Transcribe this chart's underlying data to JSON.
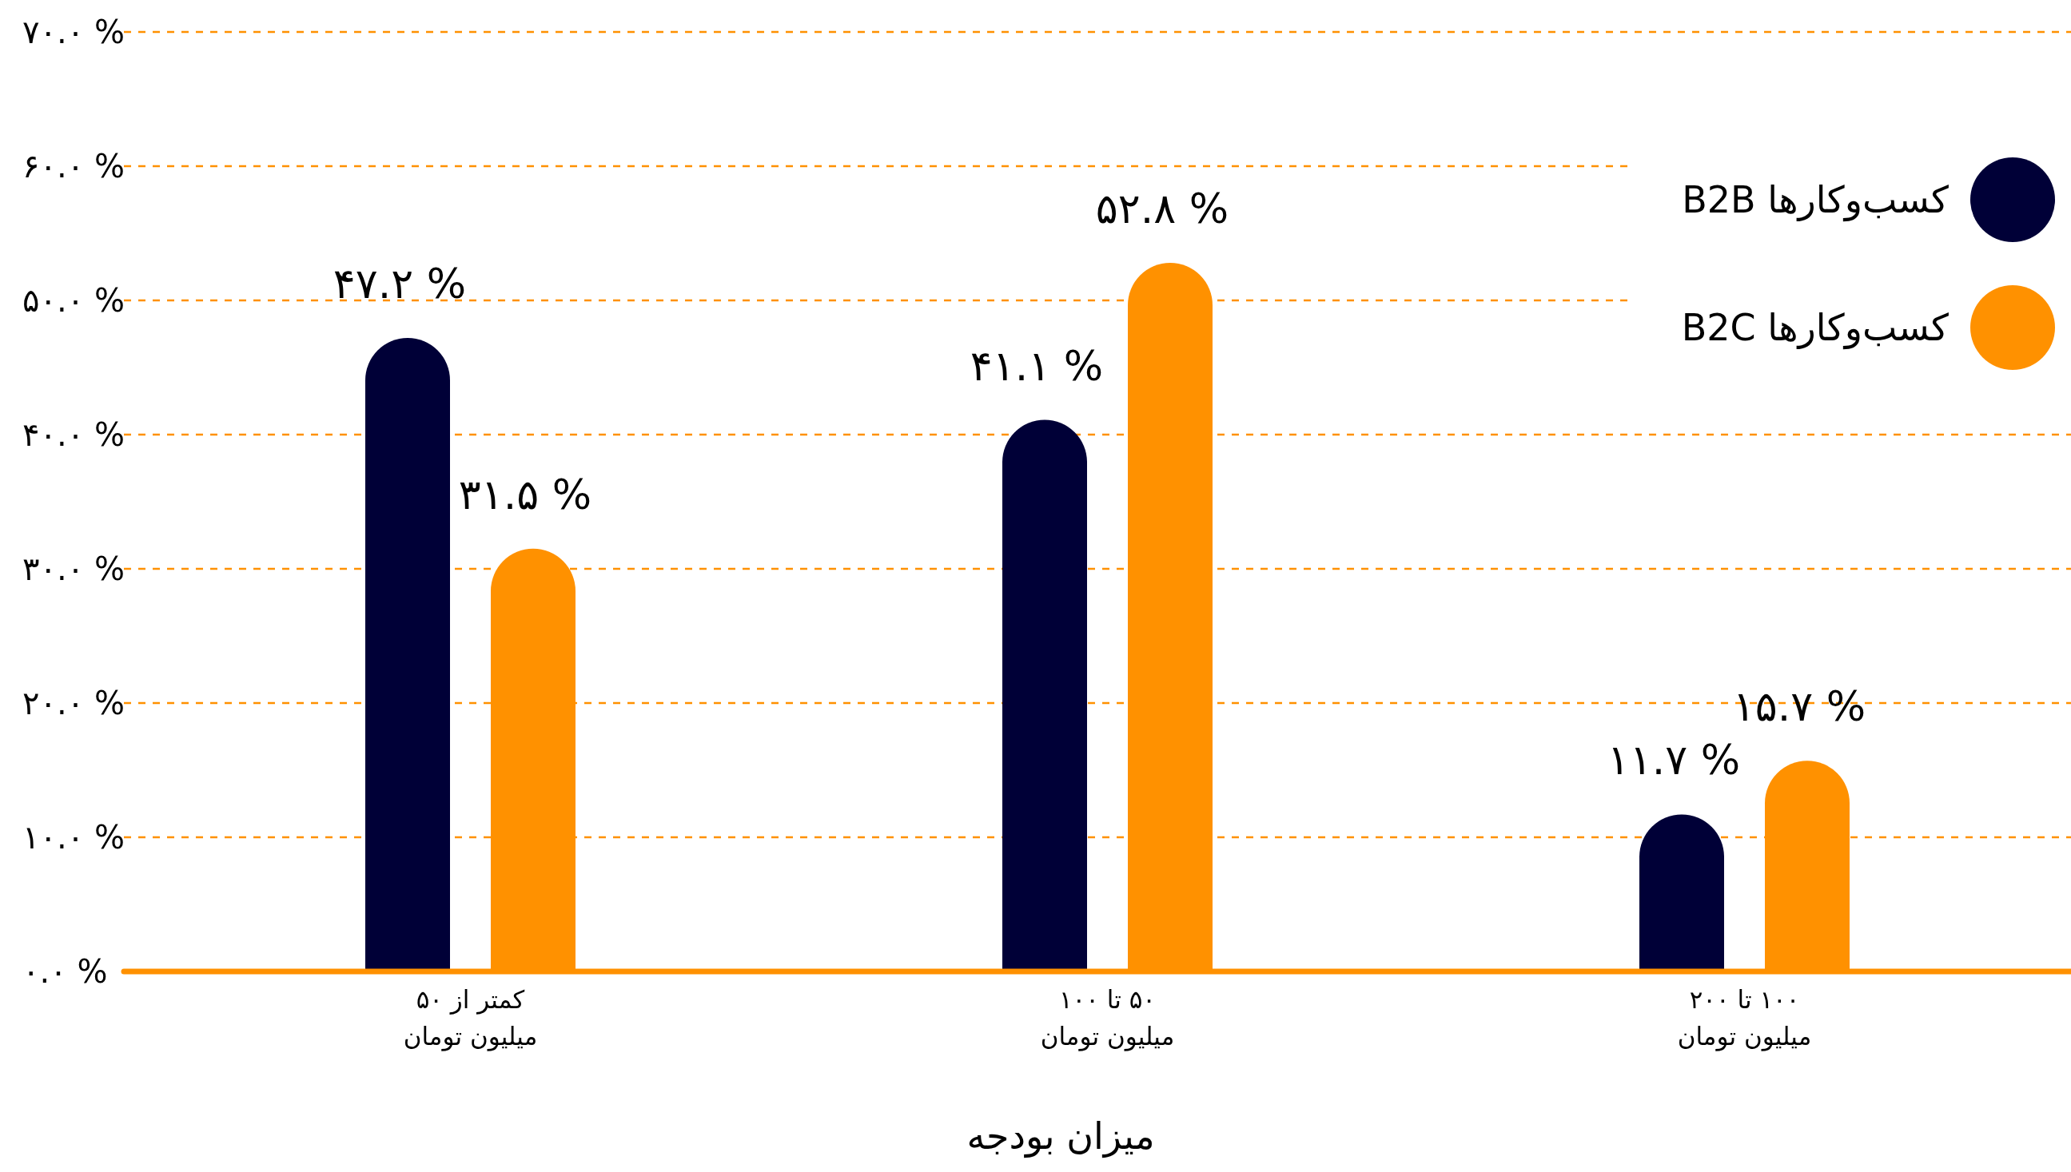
{
  "chart_data": {
    "type": "bar",
    "xlabel": "میزان بودجه",
    "categories": [
      "کمتر از ۵۰\nمیلیون تومان",
      "۵۰ تا ۱۰۰\nمیلیون تومان",
      "۱۰۰ تا ۲۰۰\nمیلیون تومان"
    ],
    "series": [
      {
        "name": "کسب‌وکارها B2B",
        "color": "#000037",
        "values": [
          47.2,
          41.1,
          11.7
        ],
        "value_labels": [
          "۴۷.۲ %",
          "۴۱.۱ %",
          "۱۱.۷ %"
        ]
      },
      {
        "name": "کسب‌وکارها B2C",
        "color": "#ff9100",
        "values": [
          31.5,
          52.8,
          15.7
        ],
        "value_labels": [
          "۳۱.۵ %",
          "۵۲.۸ %",
          "۱۵.۷ %"
        ]
      }
    ],
    "ylim": [
      0,
      70
    ],
    "yticks": [
      {
        "value": 0,
        "label": "۰.۰ %"
      },
      {
        "value": 10,
        "label": "۱۰.۰ %"
      },
      {
        "value": 20,
        "label": "۲۰.۰ %"
      },
      {
        "value": 30,
        "label": "۳۰.۰ %"
      },
      {
        "value": 40,
        "label": "۴۰.۰ %"
      },
      {
        "value": 50,
        "label": "۵۰.۰ %"
      },
      {
        "value": 60,
        "label": "۶۰.۰ %"
      },
      {
        "value": 70,
        "label": "۷۰.۰ %"
      }
    ],
    "grid": "y",
    "legend": "top right"
  }
}
